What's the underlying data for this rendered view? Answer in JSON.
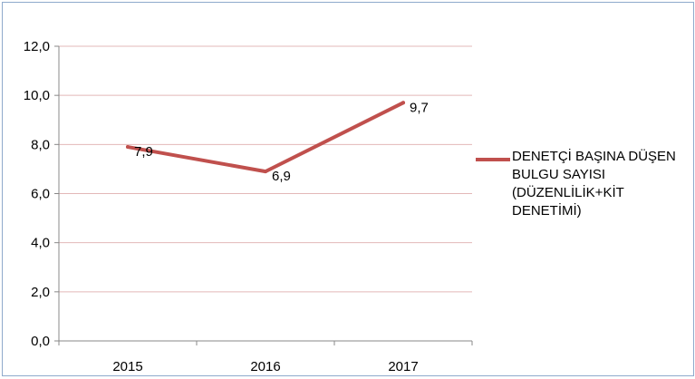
{
  "chart_data": {
    "type": "line",
    "title": "",
    "xlabel": "",
    "ylabel": "",
    "categories": [
      "2015",
      "2016",
      "2017"
    ],
    "series": [
      {
        "name": "DENETÇİ BAŞINA DÜŞEN\nBULGU SAYISI\n(DÜZENLİLİK+KİT\nDENETİMİ)",
        "values": [
          7.9,
          6.9,
          9.7
        ],
        "data_labels": [
          "7,9",
          "6,9",
          "9,7"
        ],
        "color": "#c0504d"
      }
    ],
    "ylim": [
      0,
      12
    ],
    "y_ticks": [
      0,
      2,
      4,
      6,
      8,
      10,
      12
    ],
    "y_tick_labels": [
      "0,0",
      "2,0",
      "4,0",
      "6,0",
      "8,0",
      "10,0",
      "12,0"
    ],
    "grid": true,
    "grid_color": "#e3b8b8",
    "legend_position": "right"
  }
}
